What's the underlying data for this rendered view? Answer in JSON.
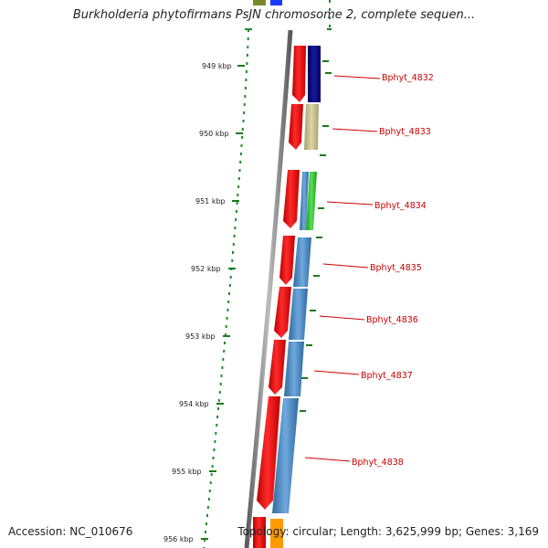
{
  "title": "Burkholderia phytofirmans PsJN chromosome 2, complete sequen...",
  "ticks": [
    {
      "label": "949 kbp"
    },
    {
      "label": "950 kbp"
    },
    {
      "label": "951 kbp"
    },
    {
      "label": "952 kbp"
    },
    {
      "label": "953 kbp"
    },
    {
      "label": "954 kbp"
    },
    {
      "label": "955 kbp"
    },
    {
      "label": "956 kbp"
    }
  ],
  "genes": [
    {
      "name": "Bphyt_4832",
      "strand_color": "#ee0000",
      "feature_color": "#000080"
    },
    {
      "name": "Bphyt_4833",
      "strand_color": "#ee0000",
      "feature_color": "#c8c288"
    },
    {
      "name": "Bphyt_4834",
      "strand_color": "#ee0000",
      "feature_color": "#4a8fd6",
      "extra_color": "#33cc33"
    },
    {
      "name": "Bphyt_4835",
      "strand_color": "#ee0000",
      "feature_color": "#4a84bf"
    },
    {
      "name": "Bphyt_4836",
      "strand_color": "#ee0000",
      "feature_color": "#4a84bf"
    },
    {
      "name": "Bphyt_4837",
      "strand_color": "#ee0000",
      "feature_color": "#4a84bf"
    },
    {
      "name": "Bphyt_4838",
      "strand_color": "#ee0000",
      "feature_color": "#4a84bf"
    }
  ],
  "colors": {
    "backbone": "#888888",
    "gc_dots": "#228b22",
    "label_line": "#cc0000",
    "top_partial": [
      "#7a8a2a",
      "#1a3aff"
    ],
    "bottom_partial": [
      "#ee0000",
      "#ff9900"
    ]
  },
  "footer": {
    "accession": "Accession: NC_010676",
    "topology": "Topology: circular; Length: 3,625,999 bp; Genes: 3,169"
  }
}
